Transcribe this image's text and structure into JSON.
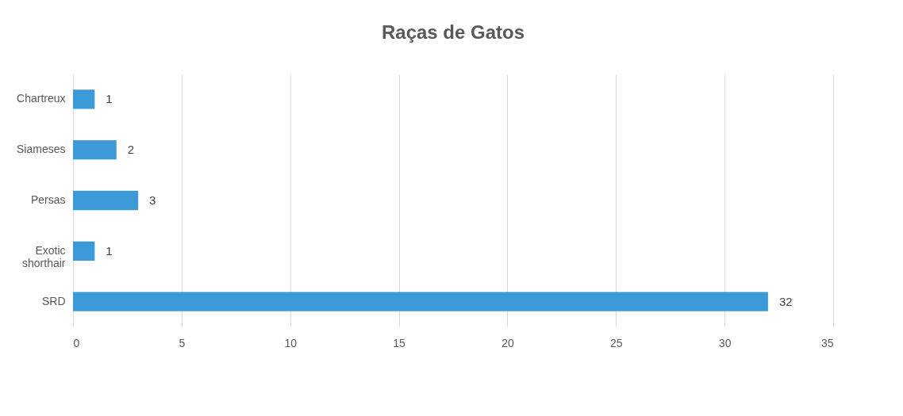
{
  "chart_data": {
    "type": "bar",
    "orientation": "horizontal",
    "title": "Raças de Gatos",
    "categories": [
      "Chartreux",
      "Siameses",
      "Persas",
      "Exotic shorthair",
      "SRD"
    ],
    "values": [
      1,
      2,
      3,
      1,
      32
    ],
    "color": "#3c9ad9",
    "xlim": [
      0,
      35
    ],
    "xticks": [
      0,
      5,
      10,
      15,
      20,
      25,
      30,
      35
    ],
    "grid": "x",
    "data_labels": true
  }
}
